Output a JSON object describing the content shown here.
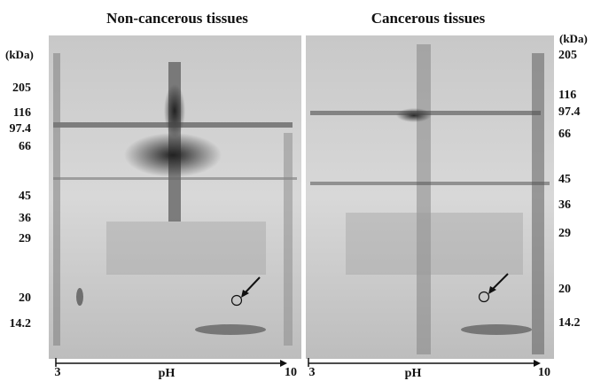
{
  "panels": [
    {
      "title": "Non-cancerous tissues",
      "unit": "(kDa)",
      "markers": [
        "205",
        "116",
        "97.4",
        "66",
        "45",
        "36",
        "29",
        "20",
        "14.2"
      ],
      "ph_axis": {
        "start": "3",
        "label": "pH",
        "end": "10"
      }
    },
    {
      "title": "Cancerous tissues",
      "unit": "(kDa)",
      "markers": [
        "205",
        "116",
        "97.4",
        "66",
        "45",
        "36",
        "29",
        "20",
        "14.2"
      ],
      "ph_axis": {
        "start": "3",
        "label": "pH",
        "end": "10"
      }
    }
  ]
}
